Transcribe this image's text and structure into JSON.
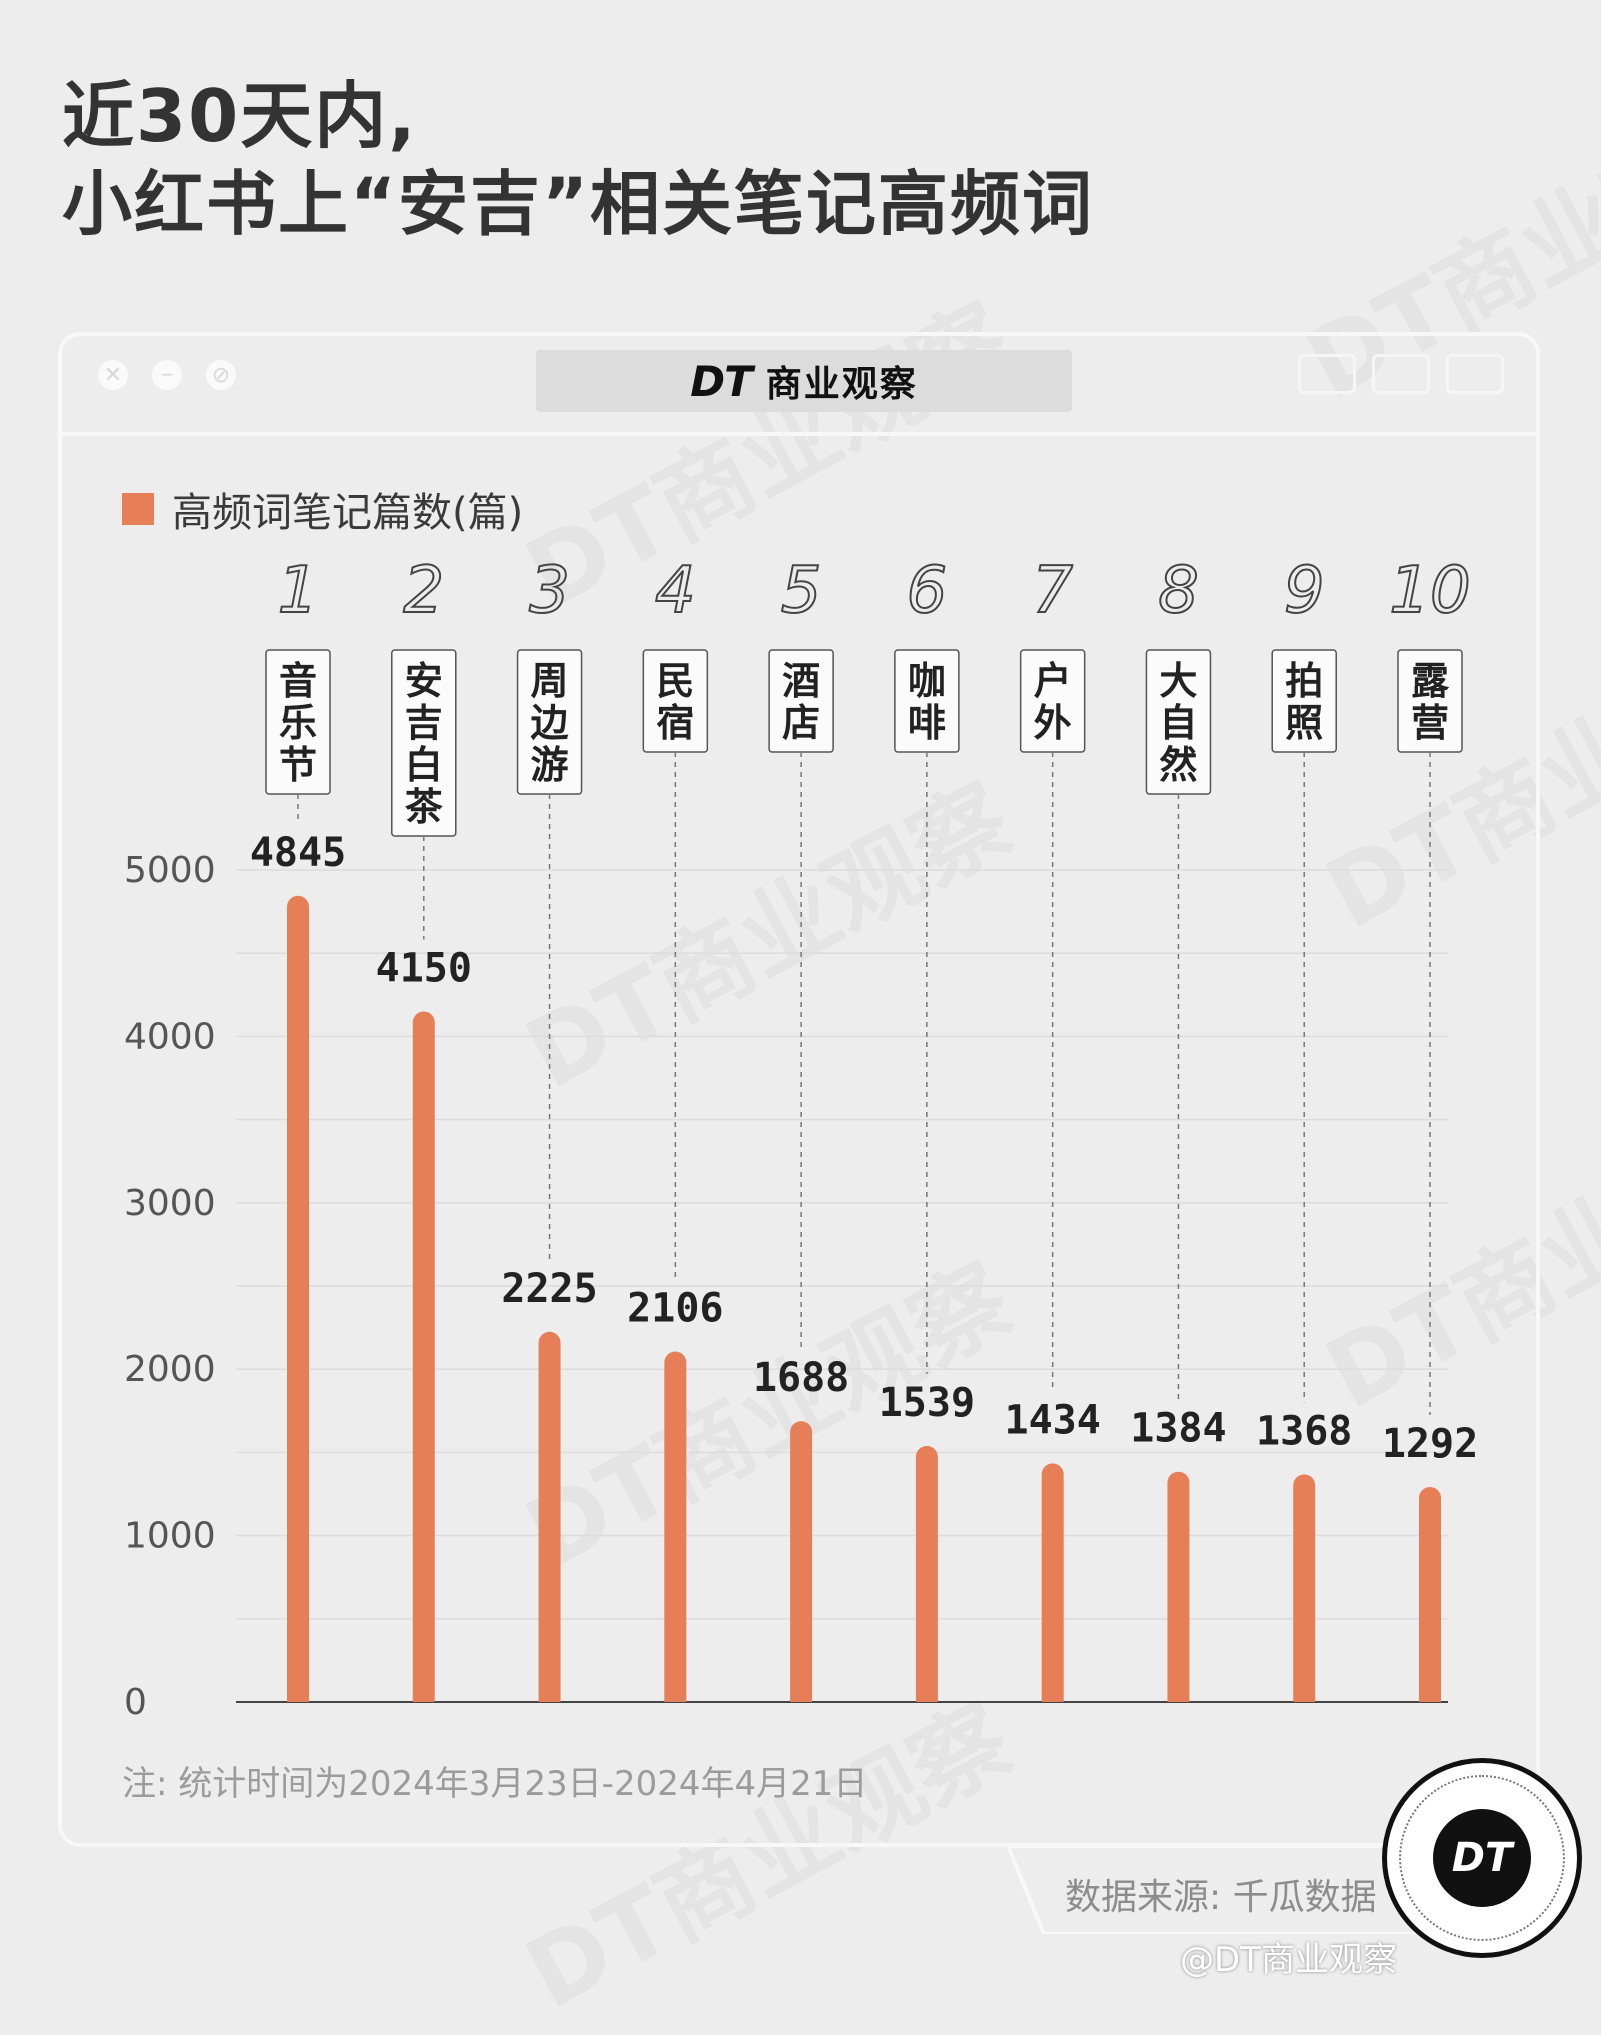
{
  "header": {
    "title_line1": "近30天内,",
    "title_line2": "小红书上“安吉”相关笔记高频词"
  },
  "window": {
    "brand_logo": "DT",
    "brand_name": "商业观察",
    "buttons": [
      "close-icon",
      "minimize-icon",
      "cancel-icon"
    ],
    "right_icons": [
      "record-icon",
      "share-icon",
      "copy-icon"
    ]
  },
  "watermark": "DT商业观察",
  "chart_data": {
    "type": "bar",
    "legend": "高频词笔记篇数(篇)",
    "categories": [
      "音乐节",
      "安吉白茶",
      "周边游",
      "民宿",
      "酒店",
      "咖啡",
      "户外",
      "大自然",
      "拍照",
      "露营"
    ],
    "ranks": [
      "1",
      "2",
      "3",
      "4",
      "5",
      "6",
      "7",
      "8",
      "9",
      "10"
    ],
    "values": [
      4845,
      4150,
      2225,
      2106,
      1688,
      1539,
      1434,
      1384,
      1368,
      1292
    ],
    "ylim": [
      0,
      5000
    ],
    "yticks": [
      "0",
      "1000",
      "2000",
      "3000",
      "4000",
      "5000"
    ],
    "grid": true,
    "bar_color": "#e67f58"
  },
  "note": "注: 统计时间为2024年3月23日-2024年4月21日",
  "source": "数据来源: 千瓜数据",
  "footer": "@DT商业观察",
  "badge": "DT"
}
